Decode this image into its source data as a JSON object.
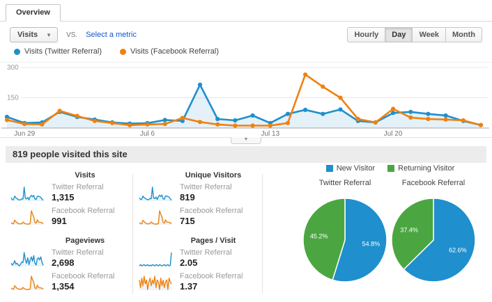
{
  "tab": {
    "label": "Overview"
  },
  "icons": {
    "caret_down": "▼"
  },
  "colors": {
    "twitter_blue": "#1f8fcd",
    "facebook_orange": "#f0810f",
    "returning_green": "#4ba642",
    "link_blue": "#1155cc"
  },
  "toolbar": {
    "metric_selector_value": "Visits",
    "vs_label": "VS.",
    "select_metric_label": "Select a metric",
    "granularity": [
      {
        "label": "Hourly",
        "active": false
      },
      {
        "label": "Day",
        "active": true
      },
      {
        "label": "Week",
        "active": false
      },
      {
        "label": "Month",
        "active": false
      }
    ]
  },
  "legend": [
    {
      "label": "Visits (Twitter Referral)",
      "color": "#1f8fcd"
    },
    {
      "label": "Visits (Facebook Referral)",
      "color": "#f0810f"
    }
  ],
  "chart_data": {
    "type": "line",
    "title": "Visits per day: Twitter Referral vs Facebook Referral",
    "x_tick_labels": [
      "Jun 29",
      "Jul 6",
      "Jul 13",
      "Jul 20"
    ],
    "x_tick_indices": [
      1,
      8,
      15,
      22
    ],
    "y_ticks": [
      150,
      300
    ],
    "ylim": [
      0,
      310
    ],
    "grid": true,
    "legend_position": "top-left",
    "series": [
      {
        "name": "Visits (Twitter Referral)",
        "color": "#1f8fcd",
        "area_fill": true,
        "values": [
          55,
          25,
          28,
          80,
          55,
          42,
          28,
          22,
          24,
          40,
          35,
          215,
          45,
          38,
          62,
          25,
          70,
          90,
          70,
          92,
          35,
          28,
          75,
          80,
          70,
          62,
          35,
          15
        ]
      },
      {
        "name": "Visits (Facebook Referral)",
        "color": "#f0810f",
        "area_fill": false,
        "values": [
          40,
          20,
          18,
          85,
          60,
          35,
          25,
          14,
          18,
          20,
          50,
          30,
          18,
          12,
          12,
          12,
          25,
          265,
          205,
          150,
          45,
          28,
          95,
          52,
          45,
          42,
          38,
          15
        ]
      }
    ]
  },
  "summary": {
    "headline": "819 people visited this site"
  },
  "scorecards": [
    {
      "title": "Visits",
      "rows": [
        {
          "label": "Twitter Referral",
          "value": "1,315",
          "color": "#1f8fcd",
          "spark": [
            55,
            25,
            28,
            80,
            55,
            42,
            28,
            22,
            24,
            40,
            35,
            215,
            45,
            38,
            62,
            25,
            70,
            90,
            70,
            92,
            35,
            28,
            75,
            80,
            70,
            62,
            35,
            15
          ]
        },
        {
          "label": "Facebook Referral",
          "value": "991",
          "color": "#f0810f",
          "spark": [
            40,
            20,
            18,
            85,
            60,
            35,
            25,
            14,
            18,
            20,
            50,
            30,
            18,
            12,
            12,
            12,
            25,
            265,
            205,
            150,
            45,
            28,
            95,
            52,
            45,
            42,
            38,
            15
          ]
        }
      ]
    },
    {
      "title": "Unique Visitors",
      "rows": [
        {
          "label": "Twitter Referral",
          "value": "819",
          "color": "#1f8fcd",
          "spark": [
            40,
            22,
            25,
            60,
            42,
            35,
            25,
            20,
            22,
            35,
            30,
            160,
            38,
            32,
            50,
            22,
            55,
            70,
            55,
            72,
            30,
            25,
            60,
            62,
            55,
            50,
            30,
            12
          ]
        },
        {
          "label": "Facebook Referral",
          "value": "715",
          "color": "#f0810f",
          "spark": [
            30,
            16,
            15,
            62,
            45,
            28,
            20,
            12,
            15,
            17,
            40,
            25,
            15,
            10,
            10,
            10,
            20,
            195,
            150,
            110,
            35,
            22,
            70,
            40,
            35,
            33,
            30,
            12
          ]
        }
      ]
    },
    {
      "title": "Pageviews",
      "rows": [
        {
          "label": "Twitter Referral",
          "value": "2,698",
          "color": "#1f8fcd",
          "spark": [
            30,
            22,
            28,
            42,
            26,
            30,
            22,
            18,
            26,
            36,
            34,
            80,
            46,
            30,
            56,
            24,
            46,
            60,
            40,
            66,
            30,
            22,
            50,
            56,
            46,
            60,
            34,
            20
          ]
        },
        {
          "label": "Facebook Referral",
          "value": "1,354",
          "color": "#f0810f",
          "spark": [
            38,
            20,
            18,
            80,
            55,
            32,
            24,
            14,
            18,
            20,
            48,
            28,
            18,
            12,
            12,
            12,
            24,
            250,
            190,
            140,
            42,
            26,
            90,
            50,
            42,
            40,
            36,
            14
          ]
        }
      ]
    },
    {
      "title": "Pages / Visit",
      "rows": [
        {
          "label": "Twitter Referral",
          "value": "2.05",
          "color": "#1f8fcd",
          "spark": [
            2.0,
            2.1,
            2.0,
            2.05,
            2.1,
            2.0,
            2.05,
            2.1,
            2.0,
            2.05,
            2.0,
            2.1,
            2.05,
            2.0,
            2.1,
            2.05,
            2.0,
            2.1,
            2.05,
            2.0,
            2.05,
            2.1,
            2.0,
            2.05,
            2.1,
            2.0,
            2.05,
            3.1
          ]
        },
        {
          "label": "Facebook Referral",
          "value": "1.37",
          "color": "#f0810f",
          "spark": [
            1.5,
            1.1,
            1.6,
            1.2,
            1.7,
            1.3,
            1.5,
            1.0,
            1.4,
            1.6,
            1.2,
            1.5,
            1.3,
            1.7,
            1.1,
            1.5,
            1.4,
            1.0,
            1.6,
            1.2,
            1.5,
            1.1,
            1.4,
            1.5,
            1.0,
            1.6,
            1.4,
            1.3
          ]
        }
      ]
    }
  ],
  "pies": {
    "legend": [
      {
        "label": "New Visitor",
        "color": "#1f8fcd"
      },
      {
        "label": "Returning Visitor",
        "color": "#4ba642"
      }
    ],
    "charts": [
      {
        "title": "Twitter Referral",
        "slices": [
          {
            "label": "New Visitor",
            "pct": 54.8,
            "pct_label": "54.8%",
            "color": "#1f8fcd"
          },
          {
            "label": "Returning Visitor",
            "pct": 45.2,
            "pct_label": "45.2%",
            "color": "#4ba642"
          }
        ]
      },
      {
        "title": "Facebook Referral",
        "slices": [
          {
            "label": "New Visitor",
            "pct": 62.6,
            "pct_label": "62.6%",
            "color": "#1f8fcd"
          },
          {
            "label": "Returning Visitor",
            "pct": 37.4,
            "pct_label": "37.4%",
            "color": "#4ba642"
          }
        ]
      }
    ]
  }
}
